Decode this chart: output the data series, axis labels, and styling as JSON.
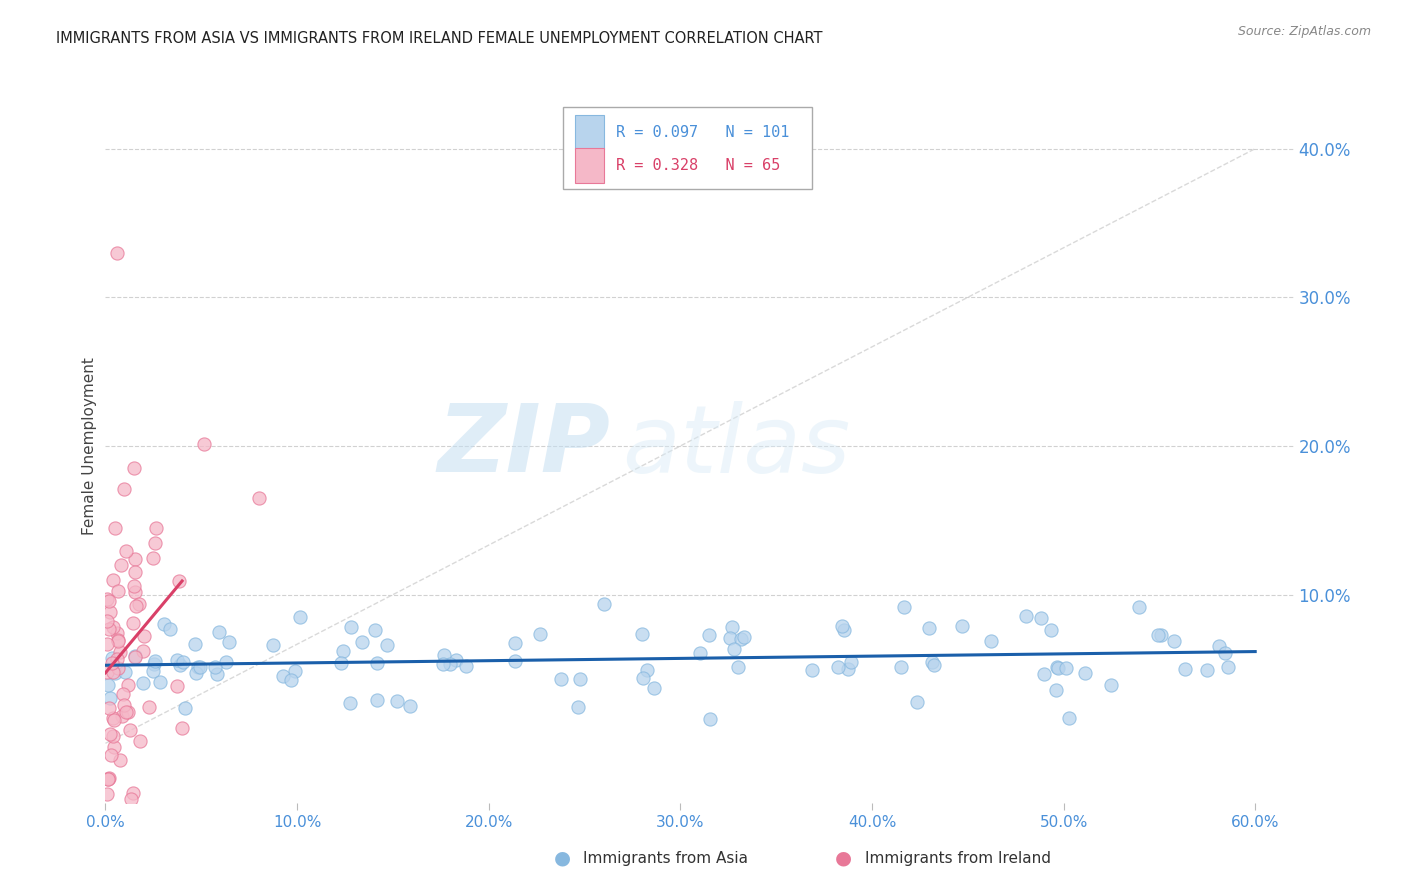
{
  "title": "IMMIGRANTS FROM ASIA VS IMMIGRANTS FROM IRELAND FEMALE UNEMPLOYMENT CORRELATION CHART",
  "source": "Source: ZipAtlas.com",
  "ylabel": "Female Unemployment",
  "xlim": [
    0.0,
    0.62
  ],
  "ylim": [
    -0.04,
    0.44
  ],
  "x_ticks": [
    0.0,
    0.1,
    0.2,
    0.3,
    0.4,
    0.5,
    0.6
  ],
  "x_tick_labels": [
    "0.0%",
    "10.0%",
    "20.0%",
    "30.0%",
    "40.0%",
    "50.0%",
    "60.0%"
  ],
  "y_ticks_right": [
    0.1,
    0.2,
    0.3,
    0.4
  ],
  "y_tick_labels_right": [
    "10.0%",
    "20.0%",
    "30.0%",
    "40.0%"
  ],
  "grid_color": "#cccccc",
  "background_color": "#ffffff",
  "watermark_zip": "ZIP",
  "watermark_atlas": "atlas",
  "legend_R_asia": "0.097",
  "legend_N_asia": "101",
  "legend_R_ireland": "0.328",
  "legend_N_ireland": "65",
  "asia_face_color": "#b8d4ed",
  "asia_edge_color": "#87b8df",
  "ireland_face_color": "#f5b8c8",
  "ireland_edge_color": "#e87898",
  "asia_line_color": "#1a5faa",
  "ireland_line_color": "#d94068",
  "diag_line_color": "#d0d0d0",
  "title_color": "#222222",
  "right_label_color": "#4a90d9",
  "bottom_label_color": "#4a90d9",
  "legend_text_asia_color": "#4a90d9",
  "legend_text_ireland_color": "#d94068",
  "legend_box_color": "#4a90d9",
  "source_color": "#888888",
  "ylabel_color": "#444444",
  "seed": 99
}
